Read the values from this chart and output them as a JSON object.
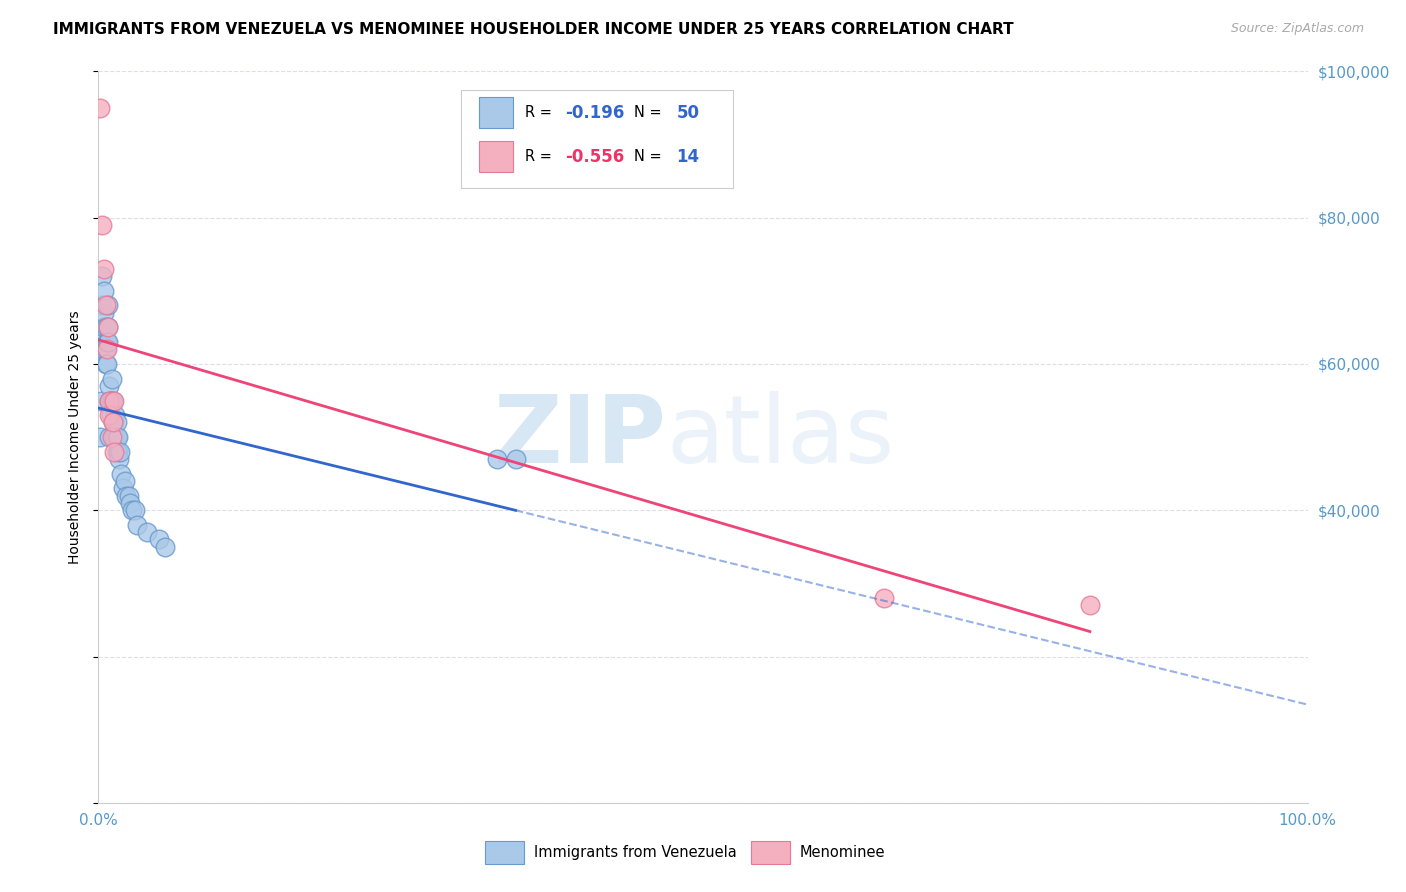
{
  "title": "IMMIGRANTS FROM VENEZUELA VS MENOMINEE HOUSEHOLDER INCOME UNDER 25 YEARS CORRELATION CHART",
  "source": "Source: ZipAtlas.com",
  "ylabel": "Householder Income Under 25 years",
  "xlim": [
    0,
    1.0
  ],
  "ylim": [
    0,
    100000
  ],
  "blue_color": "#aac8e8",
  "blue_edge": "#6699cc",
  "pink_color": "#f5b0c0",
  "pink_edge": "#e87898",
  "line_blue": "#3366cc",
  "line_pink": "#ee4477",
  "watermark_zip": "ZIP",
  "watermark_atlas": "atlas",
  "legend_label1": "Immigrants from Venezuela",
  "legend_label2": "Menominee",
  "tick_color": "#5599cc",
  "grid_color": "#ddddee",
  "title_fontsize": 11,
  "source_fontsize": 9,
  "tick_fontsize": 11,
  "ylabel_fontsize": 10,
  "blue_x": [
    0.001,
    0.002,
    0.002,
    0.003,
    0.003,
    0.004,
    0.004,
    0.005,
    0.005,
    0.006,
    0.006,
    0.006,
    0.007,
    0.007,
    0.008,
    0.008,
    0.008,
    0.009,
    0.009,
    0.009,
    0.01,
    0.01,
    0.011,
    0.011,
    0.012,
    0.012,
    0.013,
    0.013,
    0.014,
    0.015,
    0.015,
    0.015,
    0.016,
    0.016,
    0.017,
    0.018,
    0.019,
    0.02,
    0.022,
    0.023,
    0.025,
    0.026,
    0.028,
    0.03,
    0.032,
    0.04,
    0.05,
    0.055,
    0.33,
    0.345
  ],
  "blue_y": [
    50000,
    63000,
    55000,
    68000,
    72000,
    65000,
    62000,
    67000,
    70000,
    62000,
    65000,
    60000,
    63000,
    60000,
    65000,
    63000,
    68000,
    57000,
    55000,
    50000,
    55000,
    53000,
    58000,
    55000,
    55000,
    52000,
    52000,
    50000,
    53000,
    50000,
    52000,
    48000,
    50000,
    48000,
    47000,
    48000,
    45000,
    43000,
    44000,
    42000,
    42000,
    41000,
    40000,
    40000,
    38000,
    37000,
    36000,
    35000,
    47000,
    47000
  ],
  "pink_x": [
    0.001,
    0.003,
    0.005,
    0.006,
    0.007,
    0.008,
    0.009,
    0.009,
    0.011,
    0.012,
    0.013,
    0.013,
    0.65,
    0.82
  ],
  "pink_y": [
    95000,
    79000,
    73000,
    68000,
    62000,
    65000,
    55000,
    53000,
    50000,
    52000,
    55000,
    48000,
    28000,
    27000
  ]
}
